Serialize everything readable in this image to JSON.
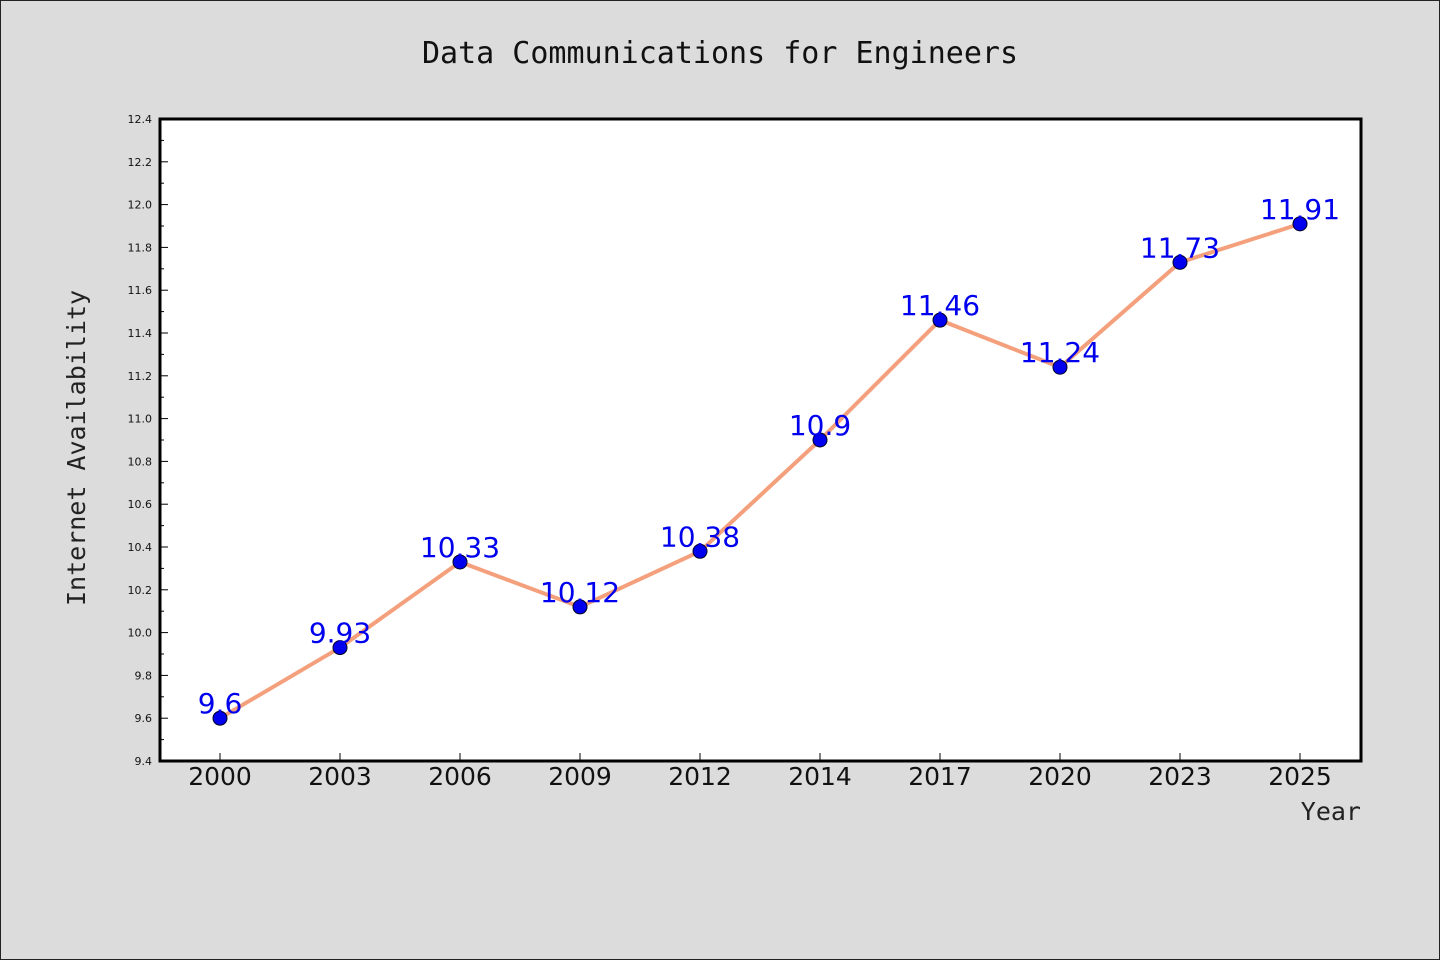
{
  "colors": {
    "background": "#dcdcdc",
    "plot_background": "#ffffff",
    "line": "#f4a07c",
    "marker": "#0000ee",
    "data_label": "#0000ee"
  },
  "chart_data": {
    "type": "line",
    "title": "Data Communications for Engineers",
    "xlabel": "Year",
    "ylabel": "Internet Availability",
    "categories": [
      "2000",
      "2003",
      "2006",
      "2009",
      "2012",
      "2014",
      "2017",
      "2020",
      "2023",
      "2025"
    ],
    "values": [
      9.6,
      9.93,
      10.33,
      10.12,
      10.38,
      10.9,
      11.46,
      11.24,
      11.73,
      11.91
    ],
    "data_labels": [
      "9.6",
      "9.93",
      "10.33",
      "10.12",
      "10.38",
      "10.9",
      "11.46",
      "11.24",
      "11.73",
      "11.91"
    ],
    "ylim": [
      9.4,
      12.4
    ],
    "yticks": [
      "9.4",
      "9.6",
      "9.8",
      "10.0",
      "10.2",
      "10.4",
      "10.6",
      "10.8",
      "11.0",
      "11.2",
      "11.4",
      "11.6",
      "11.8",
      "12.0",
      "12.2",
      "12.4"
    ],
    "grid": false,
    "legend": "none"
  }
}
